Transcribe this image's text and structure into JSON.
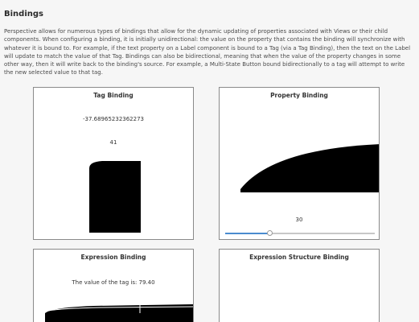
{
  "section": {
    "title": "Bindings",
    "description": "Perspective allows for numerous types of bindings that allow for the dynamic updating of properties associated with Views or their child components. When configuring a binding, it is initially unidirectional: the value on the property that contains the binding will synchronize with whatever it is bound to. For example, if the text property on a Label component is bound to a Tag (via a Tag Binding), then the text on the Label will update to match the value of that Tag. Bindings can also be bidirectional, meaning that when the value of the property changes in some other way, then it will write back to the binding's source. For example, a Multi-State Button bound bidirectionally to a tag will attempt to write the new selected value to that tag."
  },
  "cards": {
    "tag_binding": {
      "title": "Tag Binding",
      "value_text": "-37.68965232362273",
      "level_text": "41",
      "level_value": 41
    },
    "property_binding": {
      "title": "Property Binding",
      "slider_value_text": "30",
      "slider_value": 30,
      "slider_min": 0,
      "slider_max": 100
    },
    "expression_binding": {
      "title": "Expression Binding",
      "text": "The value of the tag is: 79.40"
    },
    "expression_structure_binding": {
      "title": "Expression Structure Binding"
    }
  },
  "colors": {
    "accent": "#4a8ccf",
    "shape_fill": "#000000"
  }
}
